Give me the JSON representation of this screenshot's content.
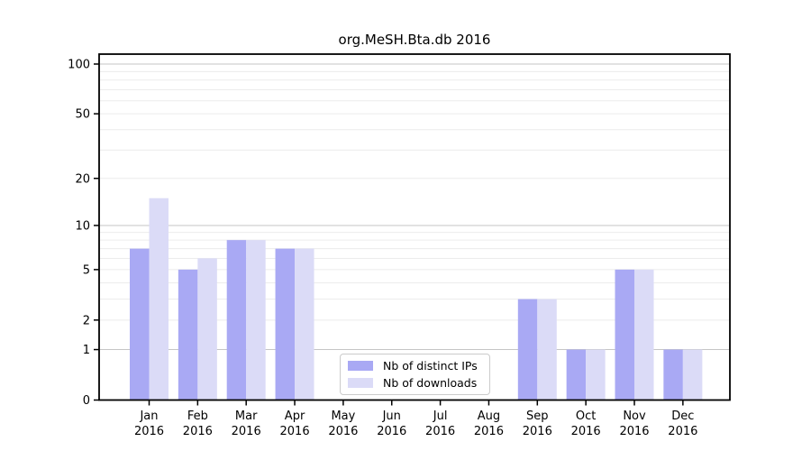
{
  "figure": {
    "title": "org.MeSH.Bta.db 2016"
  },
  "chart_data": {
    "type": "bar",
    "title": "org.MeSH.Bta.db 2016",
    "categories": [
      "Jan 2016",
      "Feb 2016",
      "Mar 2016",
      "Apr 2016",
      "May 2016",
      "Jun 2016",
      "Jul 2016",
      "Aug 2016",
      "Sep 2016",
      "Oct 2016",
      "Nov 2016",
      "Dec 2016"
    ],
    "x_tick_line1": [
      "Jan",
      "Feb",
      "Mar",
      "Apr",
      "May",
      "Jun",
      "Jul",
      "Aug",
      "Sep",
      "Oct",
      "Nov",
      "Dec"
    ],
    "x_tick_line2": "2016",
    "series": [
      {
        "name": "Nb of distinct IPs",
        "color": "#a9a9f4",
        "values": [
          7,
          5,
          8,
          7,
          0,
          0,
          0,
          0,
          3,
          1,
          5,
          1
        ]
      },
      {
        "name": "Nb of downloads",
        "color": "#dbdbf7",
        "values": [
          15,
          6,
          8,
          7,
          0,
          0,
          0,
          0,
          3,
          1,
          5,
          1
        ]
      }
    ],
    "yscale": "log1p",
    "ylim": [
      0,
      115
    ],
    "yticks": [
      0,
      1,
      2,
      5,
      10,
      20,
      50,
      100
    ],
    "ytick_labels": [
      "0",
      "1",
      "2",
      "5",
      "10",
      "20",
      "50",
      "100"
    ],
    "grid": true,
    "grid_major_values": [
      1,
      10,
      100
    ],
    "grid_minor_values": [
      2,
      3,
      4,
      5,
      6,
      7,
      8,
      9,
      20,
      30,
      40,
      50,
      60,
      70,
      80,
      90
    ],
    "legend_position": "inside bottom-center of plot",
    "colors": {
      "distinct_ips": "#a9a9f4",
      "downloads": "#dbdbf7",
      "grid_major": "#c6c6c6",
      "grid_minor": "#ececec",
      "axis": "#000000",
      "text": "#000000",
      "background": "#ffffff"
    }
  }
}
